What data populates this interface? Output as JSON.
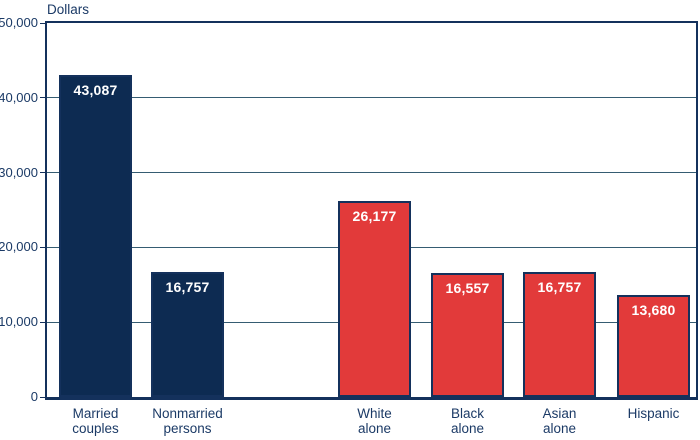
{
  "page": {
    "background": "#ffffff"
  },
  "chart_data": {
    "type": "bar",
    "title": "",
    "ylabel": "Dollars",
    "xlabel": "",
    "ylim": [
      0,
      50000
    ],
    "yticks": [
      0,
      10000,
      20000,
      30000,
      40000,
      50000
    ],
    "ytick_labels": [
      "0",
      "10,000",
      "20,000",
      "30,000",
      "40,000",
      "50,000"
    ],
    "grid": "horizontal",
    "legend": "none",
    "categories": [
      "Married couples",
      "Nonmarried persons",
      "White alone",
      "Black alone",
      "Asian alone",
      "Hispanic"
    ],
    "values": [
      43087,
      16757,
      26177,
      16557,
      16757,
      13680
    ],
    "bars": [
      {
        "slug": "married-couples",
        "label_lines": [
          "Married",
          "couples"
        ],
        "value": 43087,
        "value_label": "43,087",
        "color": "#0d2b52",
        "group": "marital-status"
      },
      {
        "slug": "nonmarried-persons",
        "label_lines": [
          "Nonmarried",
          "persons"
        ],
        "value": 16757,
        "value_label": "16,757",
        "color": "#0d2b52",
        "group": "marital-status"
      },
      {
        "slug": "white-alone",
        "label_lines": [
          "White",
          "alone"
        ],
        "value": 26177,
        "value_label": "26,177",
        "color": "#e23a3a",
        "group": "race-ethnicity"
      },
      {
        "slug": "black-alone",
        "label_lines": [
          "Black",
          "alone"
        ],
        "value": 16557,
        "value_label": "16,557",
        "color": "#e23a3a",
        "group": "race-ethnicity"
      },
      {
        "slug": "asian-alone",
        "label_lines": [
          "Asian",
          "alone"
        ],
        "value": 16757,
        "value_label": "16,757",
        "color": "#e23a3a",
        "group": "race-ethnicity"
      },
      {
        "slug": "hispanic",
        "label_lines": [
          "Hispanic"
        ],
        "value": 13680,
        "value_label": "13,680",
        "color": "#e23a3a",
        "group": "race-ethnicity"
      }
    ],
    "colors": {
      "navy_bar": "#0d2b52",
      "red_bar": "#e23a3a",
      "bar_border": "#14315c",
      "frame": "#14315c",
      "gridline": "#355c72",
      "axis_text": "#1b3a66",
      "value_text": "#ffffff"
    }
  }
}
